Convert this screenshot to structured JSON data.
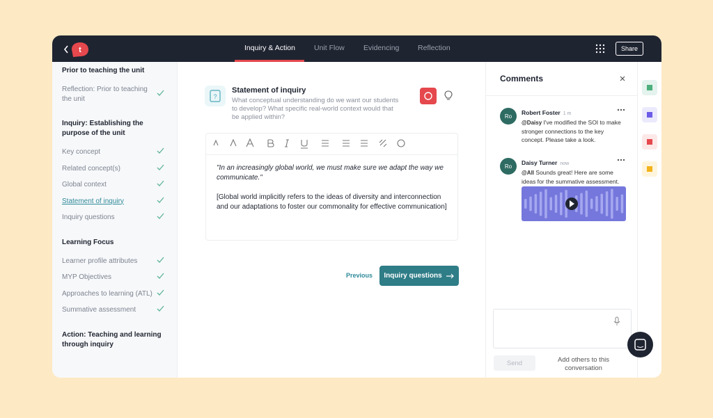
{
  "logo": "t",
  "nav": {
    "tabs": [
      "Inquiry & Action",
      "Unit Flow",
      "Evidencing",
      "Reflection"
    ],
    "share": "Share"
  },
  "sidebar": {
    "sections": [
      {
        "title": "Prior to teaching the unit",
        "items": [
          "Reflection: Prior to teaching the unit"
        ]
      },
      {
        "title": "Inquiry: Establishing the purpose of the unit",
        "items": [
          "Key concept",
          "Related concept(s)",
          "Global context",
          "Statement of inquiry",
          "Inquiry questions"
        ]
      },
      {
        "title": "Learning Focus",
        "items": [
          "Learner profile attributes",
          "MYP Objectives",
          "Approaches to learning (ATL)",
          "Summative assessment"
        ]
      },
      {
        "title": "Action: Teaching and learning through inquiry",
        "items": []
      }
    ]
  },
  "main": {
    "title": "Statement of inquiry",
    "description": "What conceptual understanding do we want our students to develop? What specific real-world context would that be applied within?",
    "quote": "\"In an increasingly global world, we must make sure we adapt the way we communicate.\"",
    "paragraph": "[Global world implicitly refers to the ideas of diversity and interconnection and our adaptations to foster our commonality for effective communication]",
    "previous": "Previous",
    "next": "Inquiry questions"
  },
  "comments": {
    "title": "Comments",
    "items": [
      {
        "avatar": "Ro",
        "name": "Robert Foster",
        "time": "1 m",
        "mention": "@Daisy",
        "text": "I've modified the SOI to make stronger connections to the key concept. Please take a look."
      },
      {
        "avatar": "Ro",
        "name": "Daisy Turner",
        "time": "now",
        "mention": "@All",
        "text": "Sounds great! Here are some ideas for the summative assessment."
      }
    ],
    "send": "Send",
    "add_others": "Add others to this conversation"
  }
}
